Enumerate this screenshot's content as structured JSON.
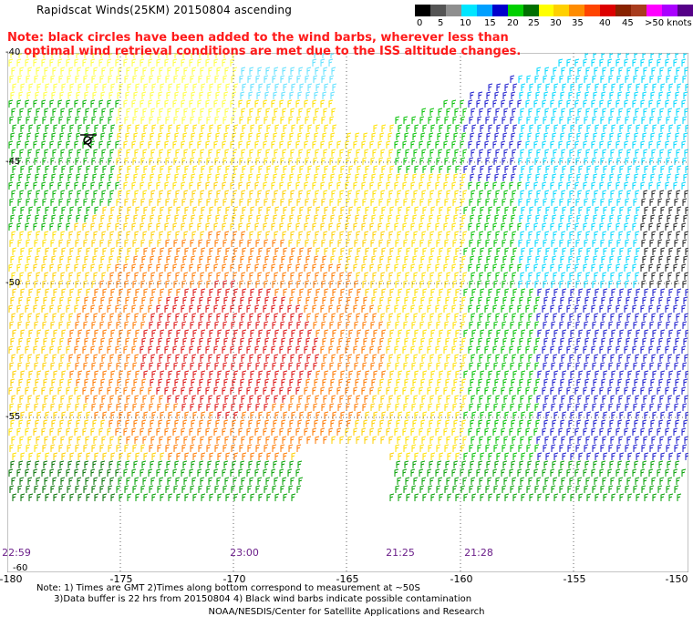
{
  "title": "Rapidscat Winds(25KM) 20150804 ascending",
  "legend": {
    "labels": [
      "0",
      "5",
      "10",
      "15",
      "20",
      "25",
      "30",
      "35",
      "40",
      "45",
      ">50 knots"
    ],
    "colors": [
      "#000000",
      "#555555",
      "#8f8f8f",
      "#00e6ff",
      "#00a0ff",
      "#0000cc",
      "#00d000",
      "#007000",
      "#ffff00",
      "#ffd000",
      "#ff8c00",
      "#ff4400",
      "#dd0000",
      "#882200",
      "#a83c1e",
      "#ff00ff",
      "#aa00ff",
      "#550088"
    ]
  },
  "note": {
    "line1": "Note: black circles have been added to the wind barbs, wherever less than",
    "line2": "    optimal wind retrieval conditions are met due to the ISS altitude changes."
  },
  "axes": {
    "lat_labels": [
      "-40",
      "-45",
      "-50",
      "-55",
      "-60"
    ],
    "lon_labels": [
      "-180",
      "-175",
      "-170",
      "-165",
      "-160",
      "-155",
      "-150"
    ]
  },
  "time_labels": [
    "22:59",
    "23:00",
    "21:25",
    "21:28"
  ],
  "footnote": {
    "line1": "Note: 1) Times are GMT 2)Times along bottom correspond to measurement at ~50S",
    "line2": "      3)Data buffer is 22 hrs from 20150804 4) Black wind barbs indicate possible contamination"
  },
  "credit": "NOAA/NESDIS/Center for Satellite Applications and Research"
}
